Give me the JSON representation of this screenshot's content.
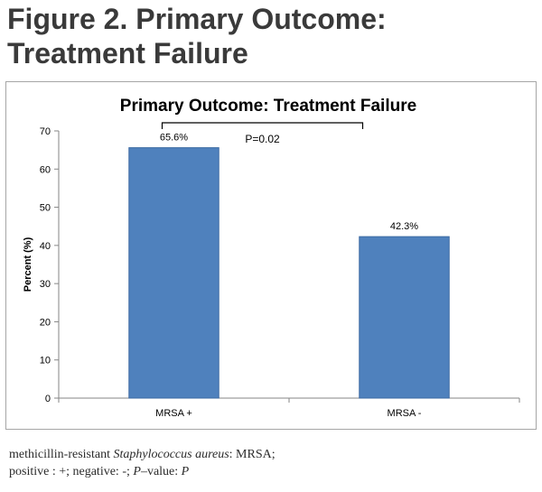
{
  "figure": {
    "heading_line1": "Figure 2. Primary Outcome:",
    "heading_line2": "Treatment Failure"
  },
  "chart_data": {
    "type": "bar",
    "title": "Primary Outcome: Treatment Failure",
    "categories": [
      "MRSA +",
      "MRSA -"
    ],
    "values": [
      65.6,
      42.3
    ],
    "data_labels": [
      "65.6%",
      "42.3%"
    ],
    "ylabel": "Percent (%)",
    "xlabel": "",
    "ylim": [
      0,
      70
    ],
    "yticks": [
      0,
      10,
      20,
      30,
      40,
      50,
      60,
      70
    ],
    "grid": false,
    "legend": "none",
    "bar_color": "#4f81bd",
    "bar_edge_color": "#3c6aa3",
    "annotation": "P=0.02"
  },
  "caption": {
    "l1_a": "methicillin-resistant ",
    "l1_b": "Staphylococcus aureus",
    "l1_c": ": MRSA;",
    "l2_a": "positive : +;  negative: -;  ",
    "l2_b": "P",
    "l2_c": "–value: ",
    "l2_d": "P"
  }
}
